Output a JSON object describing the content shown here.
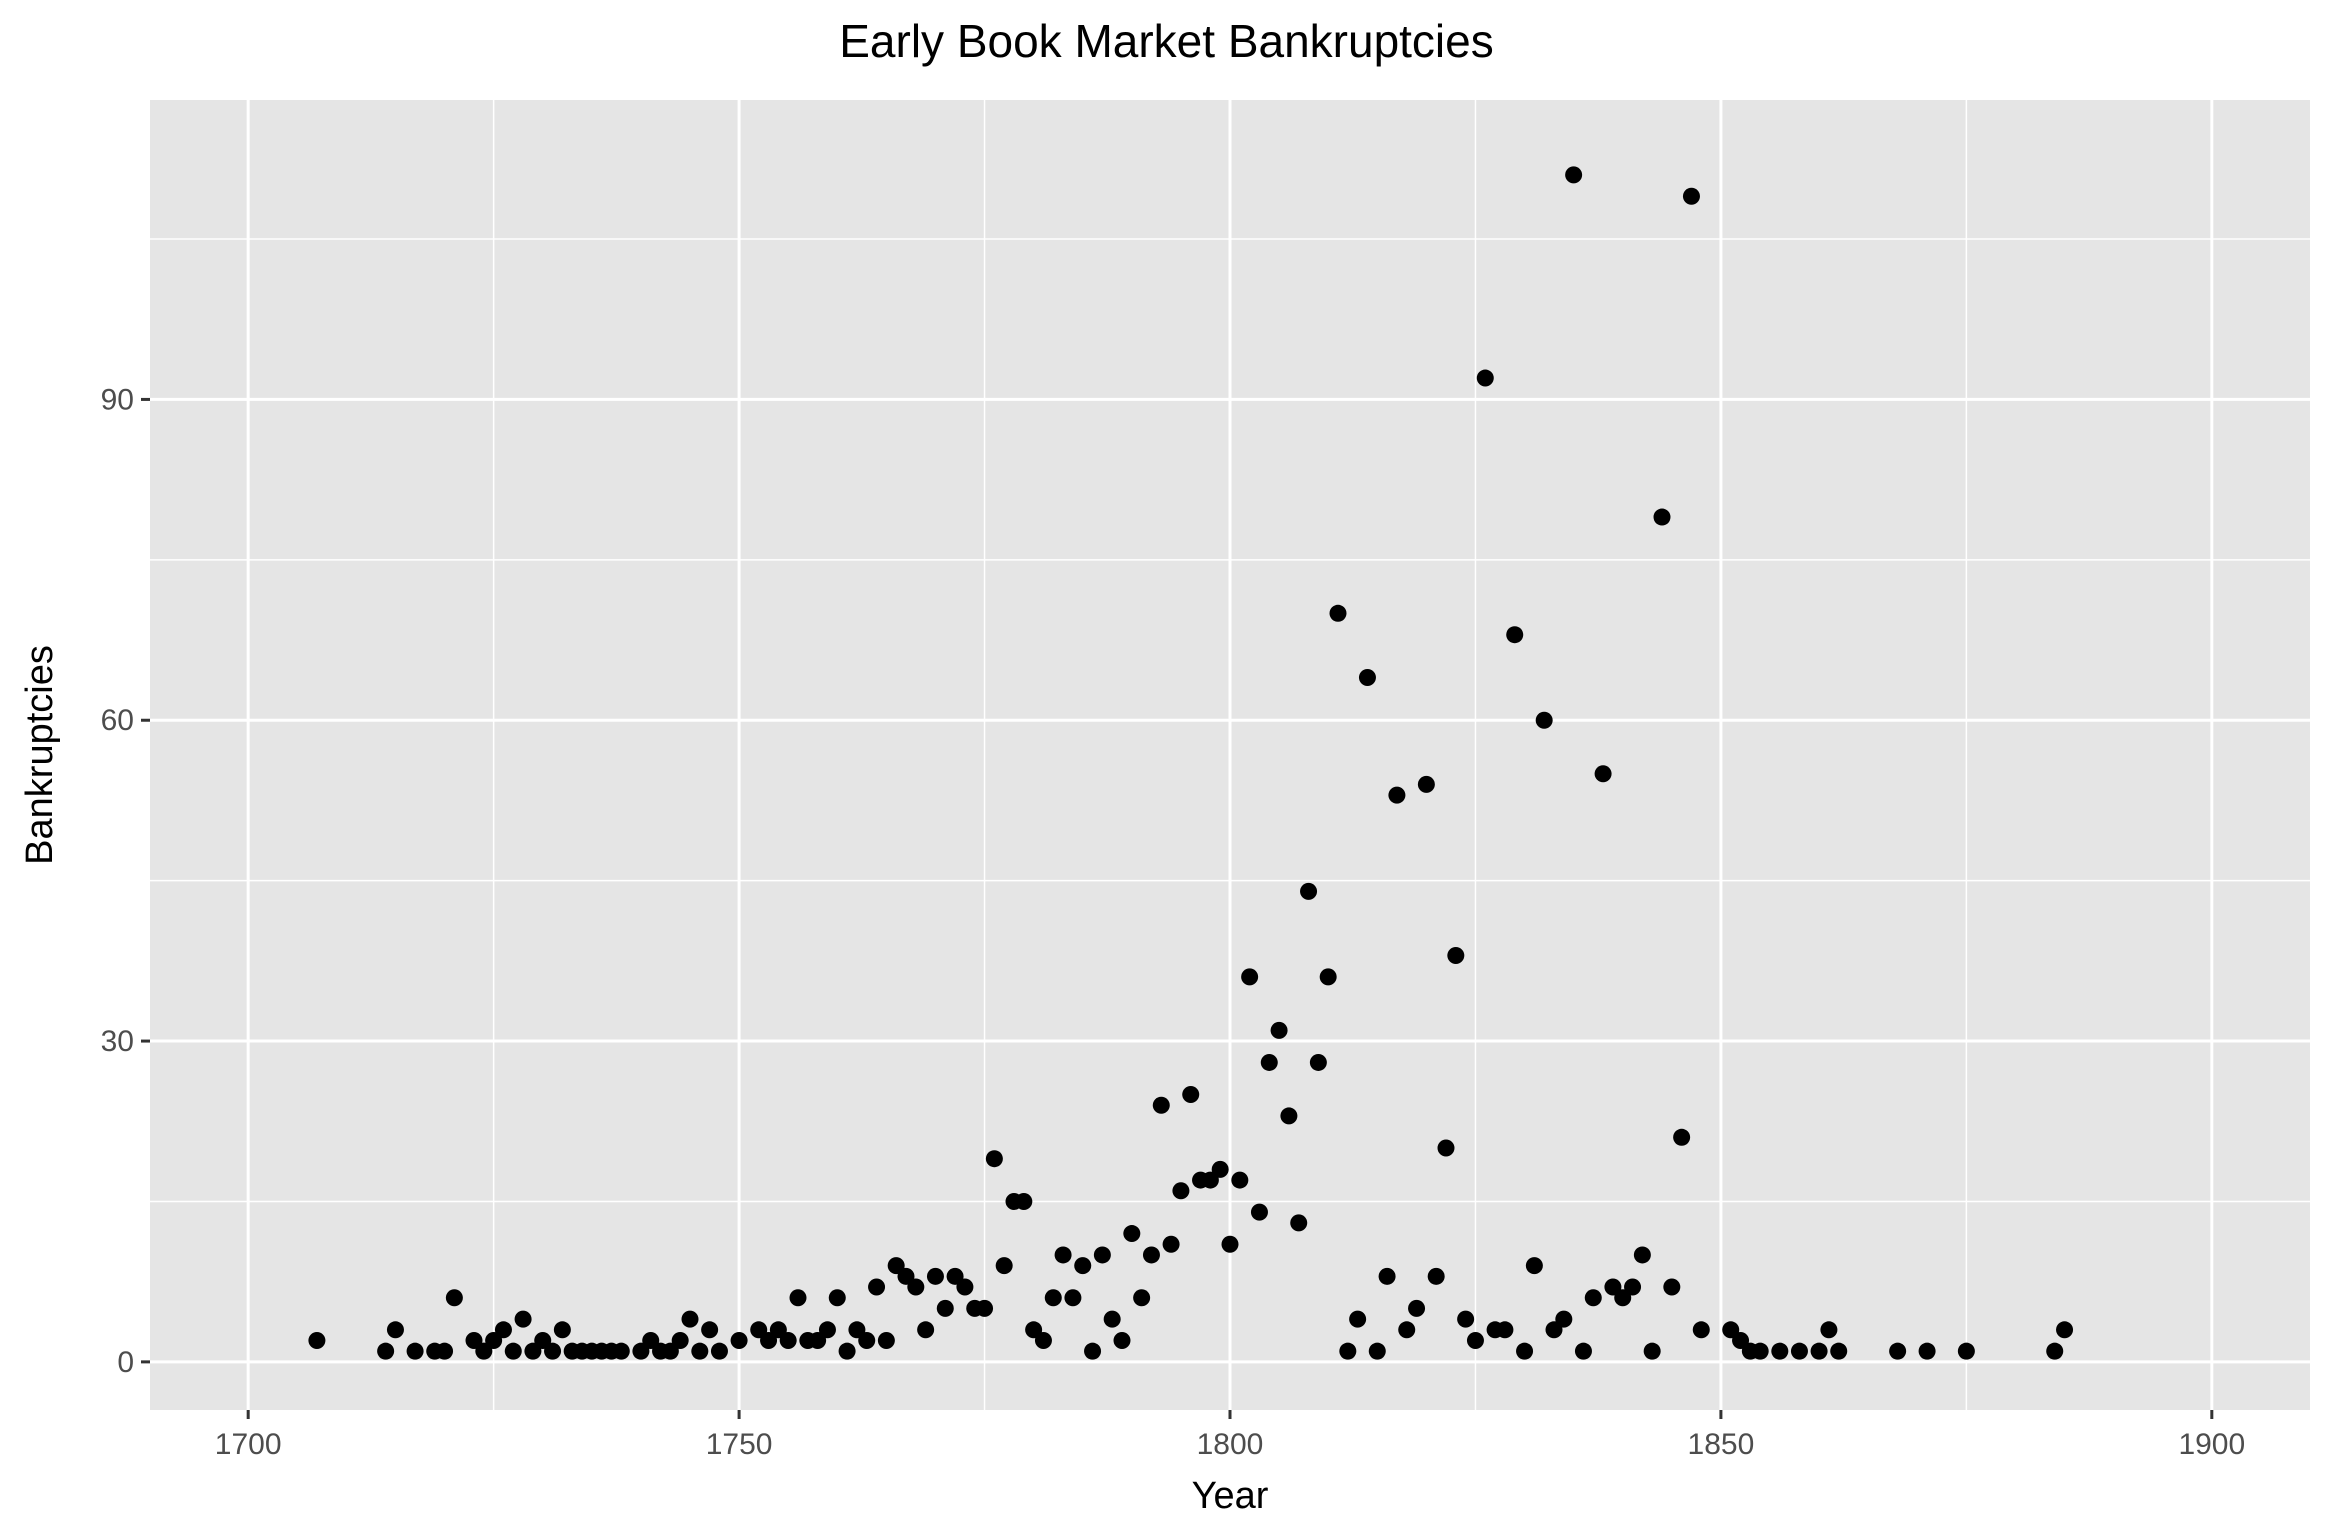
{
  "chart_data": {
    "type": "scatter",
    "title": "Early Book Market Bankruptcies",
    "xlabel": "Year",
    "ylabel": "Bankruptcies",
    "xlim": [
      1690,
      1910
    ],
    "ylim": [
      -4.5,
      118
    ],
    "x_ticks": [
      1700,
      1750,
      1800,
      1850,
      1900
    ],
    "y_ticks": [
      0,
      30,
      60,
      90
    ],
    "grid": true,
    "point_color": "#000000",
    "panel_background": "#e5e5e5",
    "grid_color": "#ffffff",
    "x": [
      1707,
      1714,
      1715,
      1717,
      1719,
      1720,
      1721,
      1723,
      1724,
      1725,
      1726,
      1727,
      1728,
      1729,
      1730,
      1731,
      1732,
      1733,
      1734,
      1735,
      1736,
      1737,
      1738,
      1740,
      1741,
      1742,
      1743,
      1744,
      1745,
      1746,
      1747,
      1748,
      1750,
      1752,
      1753,
      1754,
      1755,
      1756,
      1757,
      1758,
      1759,
      1760,
      1761,
      1762,
      1763,
      1764,
      1765,
      1766,
      1767,
      1768,
      1769,
      1770,
      1771,
      1772,
      1773,
      1774,
      1775,
      1776,
      1777,
      1778,
      1779,
      1780,
      1781,
      1782,
      1783,
      1784,
      1785,
      1786,
      1787,
      1788,
      1789,
      1790,
      1791,
      1792,
      1793,
      1794,
      1795,
      1796,
      1797,
      1798,
      1799,
      1800,
      1801,
      1802,
      1803,
      1804,
      1805,
      1806,
      1807,
      1808,
      1809,
      1810,
      1811,
      1812,
      1813,
      1814,
      1815,
      1816,
      1817,
      1818,
      1819,
      1820,
      1821,
      1822,
      1823,
      1824,
      1825,
      1826,
      1827,
      1828,
      1829,
      1830,
      1831,
      1832,
      1833,
      1834,
      1835,
      1836,
      1837,
      1838,
      1839,
      1840,
      1841,
      1842,
      1843,
      1844,
      1845,
      1846,
      1847,
      1848,
      1851,
      1852,
      1853,
      1854,
      1856,
      1858,
      1860,
      1861,
      1862,
      1868,
      1871,
      1875,
      1884,
      1885
    ],
    "y": [
      2,
      1,
      3,
      1,
      1,
      1,
      6,
      2,
      1,
      2,
      3,
      1,
      4,
      1,
      2,
      1,
      3,
      1,
      1,
      1,
      1,
      1,
      1,
      1,
      2,
      1,
      1,
      2,
      4,
      1,
      3,
      1,
      2,
      3,
      2,
      3,
      2,
      6,
      2,
      2,
      3,
      6,
      1,
      3,
      2,
      7,
      2,
      9,
      8,
      7,
      3,
      8,
      5,
      8,
      7,
      5,
      5,
      19,
      9,
      15,
      15,
      3,
      2,
      6,
      10,
      6,
      9,
      1,
      10,
      4,
      2,
      12,
      6,
      10,
      24,
      11,
      16,
      25,
      17,
      17,
      18,
      11,
      17,
      36,
      14,
      28,
      31,
      23,
      13,
      44,
      28,
      36,
      70,
      1,
      4,
      64,
      1,
      8,
      53,
      3,
      5,
      54,
      8,
      20,
      38,
      4,
      2,
      92,
      3,
      3,
      68,
      1,
      9,
      60,
      3,
      4,
      111,
      1,
      6,
      55,
      7,
      6,
      7,
      10,
      1,
      79,
      7,
      21,
      109,
      3,
      3,
      2,
      1,
      1,
      1,
      1,
      1,
      3,
      1,
      1,
      1,
      1,
      1,
      3
    ]
  }
}
